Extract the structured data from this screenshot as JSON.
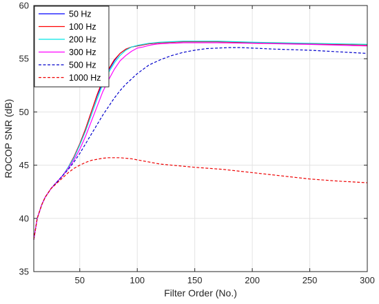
{
  "chart_data": {
    "type": "line",
    "title": "",
    "xlabel": "Filter Order (No.)",
    "ylabel": "ROCOP SNR (dB)",
    "xlim": [
      10,
      300
    ],
    "ylim": [
      35,
      60
    ],
    "xticks": [
      50,
      100,
      150,
      200,
      250,
      300
    ],
    "yticks": [
      35,
      40,
      45,
      50,
      55,
      60
    ],
    "grid": true,
    "legend_position": "top-left",
    "series": [
      {
        "name": "50 Hz",
        "color": "#0000ff",
        "dash": "solid",
        "x": [
          10,
          13,
          17,
          20,
          25,
          30,
          35,
          40,
          45,
          50,
          55,
          60,
          65,
          70,
          75,
          80,
          85,
          90,
          95,
          100,
          105,
          110,
          115,
          120,
          130,
          140,
          150,
          170,
          200,
          250,
          300
        ],
        "y": [
          38.0,
          40.0,
          41.3,
          42.0,
          42.8,
          43.4,
          44.0,
          44.8,
          45.8,
          47.0,
          48.4,
          50.0,
          51.5,
          52.8,
          53.9,
          54.8,
          55.5,
          55.9,
          56.1,
          56.2,
          56.3,
          56.4,
          56.45,
          56.5,
          56.55,
          56.6,
          56.6,
          56.6,
          56.5,
          56.4,
          56.3
        ]
      },
      {
        "name": "100 Hz",
        "color": "#ff0000",
        "dash": "solid",
        "x": [
          10,
          13,
          17,
          20,
          25,
          30,
          35,
          40,
          45,
          50,
          55,
          60,
          65,
          70,
          75,
          80,
          85,
          90,
          95,
          100,
          105,
          110,
          115,
          120,
          130,
          140,
          150,
          170,
          200,
          250,
          300
        ],
        "y": [
          38.0,
          40.0,
          41.3,
          42.0,
          42.8,
          43.4,
          44.0,
          44.8,
          45.8,
          47.0,
          48.4,
          50.0,
          51.6,
          53.0,
          54.0,
          54.9,
          55.5,
          55.9,
          56.1,
          56.2,
          56.3,
          56.4,
          56.45,
          56.5,
          56.55,
          56.6,
          56.6,
          56.6,
          56.5,
          56.4,
          56.3
        ]
      },
      {
        "name": "200 Hz",
        "color": "#00e5e5",
        "dash": "solid",
        "x": [
          10,
          13,
          17,
          20,
          25,
          30,
          35,
          40,
          45,
          50,
          55,
          60,
          65,
          70,
          75,
          80,
          85,
          90,
          95,
          100,
          105,
          110,
          115,
          120,
          130,
          140,
          150,
          170,
          200,
          250,
          300
        ],
        "y": [
          38.0,
          40.0,
          41.3,
          42.0,
          42.8,
          43.4,
          44.0,
          44.8,
          45.7,
          46.9,
          48.2,
          49.7,
          51.2,
          52.6,
          53.7,
          54.6,
          55.3,
          55.8,
          56.1,
          56.25,
          56.35,
          56.45,
          56.5,
          56.55,
          56.6,
          56.65,
          56.65,
          56.65,
          56.55,
          56.45,
          56.35
        ]
      },
      {
        "name": "300 Hz",
        "color": "#ff00ff",
        "dash": "solid",
        "x": [
          10,
          13,
          17,
          20,
          25,
          30,
          35,
          40,
          45,
          50,
          55,
          60,
          65,
          70,
          75,
          80,
          85,
          90,
          95,
          100,
          105,
          110,
          115,
          120,
          130,
          140,
          150,
          170,
          200,
          250,
          300
        ],
        "y": [
          38.0,
          40.0,
          41.3,
          42.0,
          42.8,
          43.4,
          44.0,
          44.7,
          45.5,
          46.5,
          47.7,
          49.1,
          50.5,
          51.9,
          53.0,
          54.0,
          54.8,
          55.3,
          55.7,
          56.0,
          56.1,
          56.25,
          56.35,
          56.4,
          56.45,
          56.5,
          56.5,
          56.5,
          56.45,
          56.35,
          56.2
        ]
      },
      {
        "name": "500 Hz",
        "color": "#0000cc",
        "dash": "dashed",
        "x": [
          10,
          13,
          17,
          20,
          25,
          30,
          35,
          40,
          45,
          50,
          55,
          60,
          65,
          70,
          75,
          80,
          85,
          90,
          95,
          100,
          110,
          120,
          130,
          140,
          150,
          160,
          170,
          180,
          190,
          200,
          220,
          250,
          300
        ],
        "y": [
          38.0,
          40.0,
          41.3,
          42.0,
          42.8,
          43.4,
          44.0,
          44.6,
          45.3,
          46.1,
          47.0,
          47.9,
          48.8,
          49.7,
          50.5,
          51.3,
          52.0,
          52.6,
          53.1,
          53.6,
          54.4,
          54.9,
          55.3,
          55.6,
          55.8,
          55.95,
          56.0,
          56.05,
          56.05,
          56.0,
          55.9,
          55.8,
          55.5
        ]
      },
      {
        "name": "1000 Hz",
        "color": "#ee0000",
        "dash": "dashed",
        "x": [
          10,
          13,
          17,
          20,
          25,
          30,
          35,
          40,
          45,
          50,
          55,
          60,
          65,
          70,
          75,
          80,
          85,
          90,
          95,
          100,
          110,
          120,
          130,
          140,
          150,
          175,
          200,
          225,
          250,
          275,
          300
        ],
        "y": [
          38.0,
          40.0,
          41.3,
          42.0,
          42.8,
          43.3,
          43.8,
          44.3,
          44.7,
          45.0,
          45.25,
          45.45,
          45.55,
          45.65,
          45.7,
          45.7,
          45.7,
          45.65,
          45.6,
          45.5,
          45.3,
          45.1,
          45.0,
          44.9,
          44.8,
          44.6,
          44.3,
          44.0,
          43.7,
          43.5,
          43.35
        ]
      }
    ]
  }
}
